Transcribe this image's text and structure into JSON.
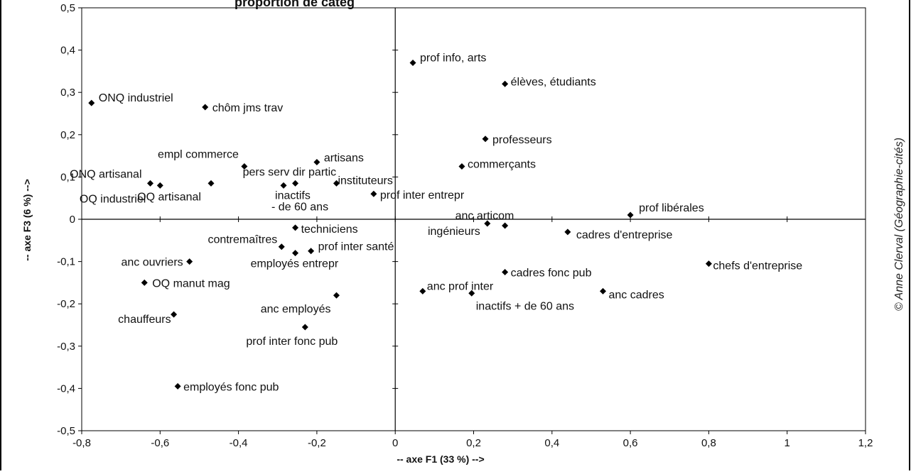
{
  "header_fragment": "proportion de catég",
  "credit": "© Anne Clerval (Géographie-cités)",
  "chart_data": {
    "type": "scatter",
    "title": "",
    "xlabel": "-- axe F1 (33 %) -->",
    "ylabel": "-- axe F3 (6 %) -->",
    "xlim": [
      -0.8,
      1.2
    ],
    "ylim": [
      -0.5,
      0.5
    ],
    "x_ticks": [
      -0.8,
      -0.6,
      -0.4,
      -0.2,
      0,
      0.2,
      0.4,
      0.6,
      0.8,
      1,
      1.2
    ],
    "x_tick_labels": [
      "-0,8",
      "-0,6",
      "-0,4",
      "-0,2",
      "0",
      "0,2",
      "0,4",
      "0,6",
      "0,8",
      "1",
      "1,2"
    ],
    "y_ticks": [
      0.5,
      0.4,
      0.3,
      0.2,
      0.1,
      0,
      -0.1,
      -0.2,
      -0.3,
      -0.4,
      -0.5
    ],
    "y_tick_labels": [
      "0,5",
      "0,4",
      "0,3",
      "0,2",
      "0,1",
      "0",
      "-0,1",
      "-0,2",
      "-0,3",
      "-0,4",
      "-0,5"
    ],
    "grid": false,
    "marker": "diamond",
    "marker_color": "#000000",
    "points": [
      {
        "label": "ONQ industriel",
        "x": -0.775,
        "y": 0.275
      },
      {
        "label": "chôm jms trav",
        "x": -0.485,
        "y": 0.265
      },
      {
        "label": "prof info, arts",
        "x": 0.045,
        "y": 0.37
      },
      {
        "label": "élèves, étudiants",
        "x": 0.28,
        "y": 0.32
      },
      {
        "label": "professeurs",
        "x": 0.23,
        "y": 0.19
      },
      {
        "label": "empl commerce",
        "x": -0.385,
        "y": 0.125
      },
      {
        "label": "artisans",
        "x": -0.2,
        "y": 0.135
      },
      {
        "label": "commerçants",
        "x": 0.17,
        "y": 0.125
      },
      {
        "label": "ONQ artisanal",
        "x": -0.625,
        "y": 0.085
      },
      {
        "label": "OQ industriel",
        "x": -0.6,
        "y": 0.08
      },
      {
        "label": "OQ artisanal",
        "x": -0.47,
        "y": 0.085
      },
      {
        "label": "pers serv dir partic",
        "x": -0.255,
        "y": 0.085
      },
      {
        "label": "inactifs - de 60 ans",
        "x": -0.285,
        "y": 0.08
      },
      {
        "label": "instituteurs",
        "x": -0.15,
        "y": 0.085
      },
      {
        "label": "prof inter entrepr",
        "x": -0.055,
        "y": 0.06
      },
      {
        "label": "prof libérales",
        "x": 0.6,
        "y": 0.01
      },
      {
        "label": "anc articom",
        "x": 0.28,
        "y": -0.015
      },
      {
        "label": "ingénieurs",
        "x": 0.235,
        "y": -0.01
      },
      {
        "label": "cadres d'entreprise",
        "x": 0.44,
        "y": -0.03
      },
      {
        "label": "techniciens",
        "x": -0.255,
        "y": -0.02
      },
      {
        "label": "contremaîtres",
        "x": -0.29,
        "y": -0.065
      },
      {
        "label": "prof inter santé",
        "x": -0.215,
        "y": -0.075
      },
      {
        "label": "employés entrepr",
        "x": -0.255,
        "y": -0.08
      },
      {
        "label": "anc ouvriers",
        "x": -0.525,
        "y": -0.1
      },
      {
        "label": "chefs d'entreprise",
        "x": 0.8,
        "y": -0.105
      },
      {
        "label": "cadres fonc pub",
        "x": 0.28,
        "y": -0.125
      },
      {
        "label": "OQ manut mag",
        "x": -0.64,
        "y": -0.15
      },
      {
        "label": "anc prof inter",
        "x": 0.07,
        "y": -0.17
      },
      {
        "label": "inactifs + de 60 ans",
        "x": 0.195,
        "y": -0.175
      },
      {
        "label": "anc cadres",
        "x": 0.53,
        "y": -0.17
      },
      {
        "label": "anc employés",
        "x": -0.15,
        "y": -0.18
      },
      {
        "label": "chauffeurs",
        "x": -0.565,
        "y": -0.225
      },
      {
        "label": "prof inter fonc pub",
        "x": -0.23,
        "y": -0.255
      },
      {
        "label": "employés fonc pub",
        "x": -0.555,
        "y": -0.395
      }
    ]
  }
}
